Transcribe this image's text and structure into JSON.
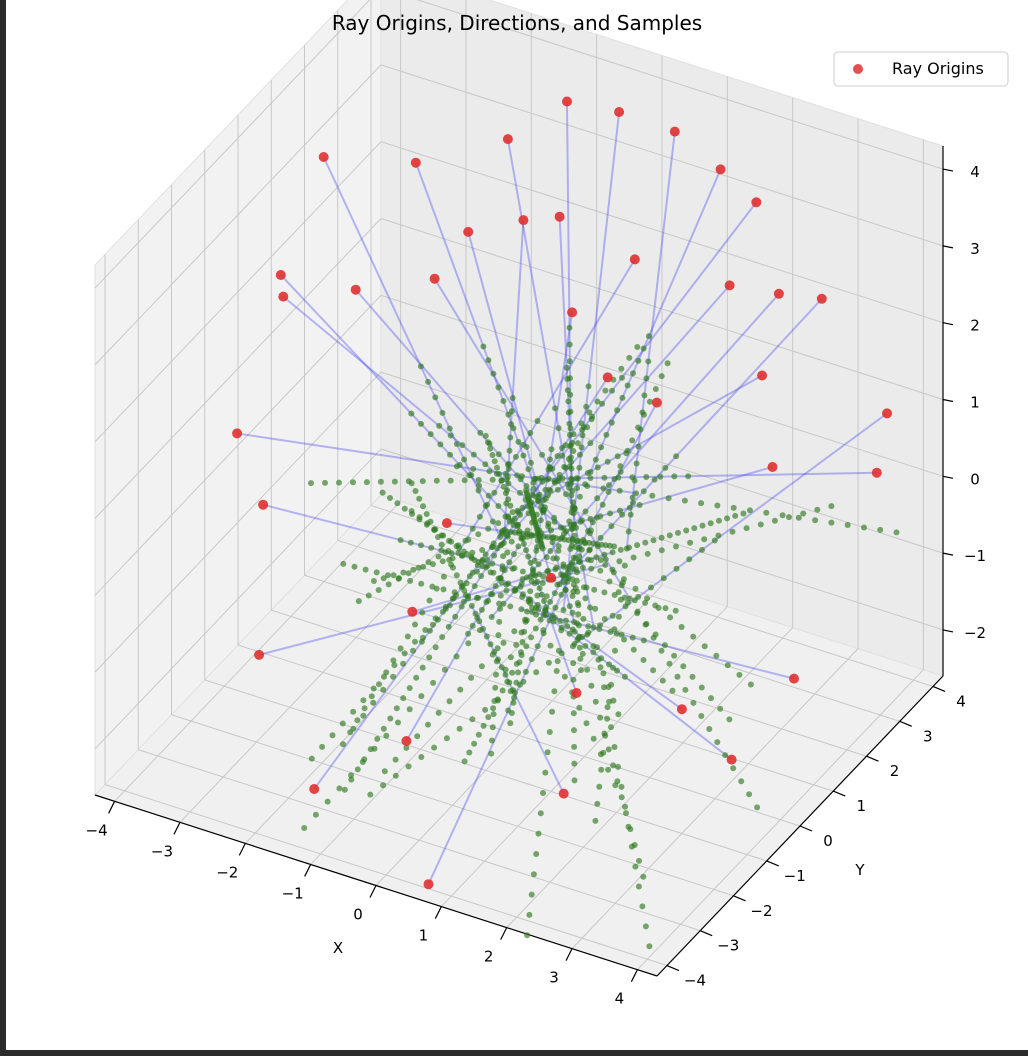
{
  "chart_data": {
    "type": "scatter",
    "title": "Ray Origins, Directions, and Samples",
    "xlabel": "X",
    "ylabel": "Y",
    "zlabel": "",
    "xlim": [
      -4.3,
      4.3
    ],
    "ylim": [
      -4.3,
      4.3
    ],
    "zlim": [
      -2.6,
      4.3
    ],
    "x_ticks": [
      "−4",
      "−3",
      "−2",
      "−1",
      "0",
      "1",
      "2",
      "3",
      "4"
    ],
    "y_ticks": [
      "−4",
      "−3",
      "−2",
      "−1",
      "0",
      "1",
      "2",
      "3",
      "4"
    ],
    "z_ticks": [
      "−2",
      "−1",
      "0",
      "1",
      "2",
      "3",
      "4"
    ],
    "grid": true,
    "legend": {
      "position": "top-right",
      "entries": [
        "Ray Origins"
      ]
    },
    "colors": {
      "origins": "#e03030",
      "directions": "#3b3bf0",
      "samples": "#2f7a1f"
    },
    "series": [
      {
        "name": "Ray Origins",
        "marker": "circle",
        "color": "#e03030"
      }
    ],
    "ray_origins": [
      [
        -3.6,
        1.2,
        3.4
      ],
      [
        -3.9,
        0.5,
        2.1
      ],
      [
        -2.8,
        2.4,
        3.0
      ],
      [
        -3.2,
        -0.8,
        2.6
      ],
      [
        -2.1,
        2.6,
        2.2
      ],
      [
        -1.9,
        3.4,
        3.1
      ],
      [
        -1.2,
        3.8,
        3.6
      ],
      [
        -0.3,
        3.6,
        3.8
      ],
      [
        0.4,
        3.9,
        3.6
      ],
      [
        1.1,
        3.9,
        3.3
      ],
      [
        1.8,
        3.6,
        3.2
      ],
      [
        2.4,
        3.1,
        2.4
      ],
      [
        2.6,
        2.2,
        1.8
      ],
      [
        -0.6,
        2.4,
        2.9
      ],
      [
        0.5,
        2.5,
        2.6
      ],
      [
        1.5,
        1.2,
        1.6
      ],
      [
        3.8,
        3.6,
        1.0
      ],
      [
        4.0,
        2.9,
        0.6
      ],
      [
        3.7,
        1.0,
        -1.3
      ],
      [
        2.9,
        -0.8,
        -1.1
      ],
      [
        2.0,
        -2.2,
        -0.5
      ],
      [
        1.1,
        -1.2,
        0.3
      ],
      [
        0.2,
        -3.6,
        0.7
      ],
      [
        -0.9,
        -0.4,
        0.1
      ],
      [
        -2.4,
        -3.1,
        -0.8
      ],
      [
        -3.0,
        -1.8,
        0.4
      ],
      [
        -1.2,
        -3.8,
        -1.9
      ],
      [
        0.6,
        -3.9,
        -2.6
      ],
      [
        1.6,
        -1.8,
        -2.1
      ],
      [
        -0.4,
        -2.6,
        -1.6
      ],
      [
        3.1,
        0.3,
        -2.2
      ],
      [
        2.2,
        3.3,
        0.0
      ],
      [
        -3.5,
        -1.6,
        1.1
      ],
      [
        -1.8,
        1.0,
        2.4
      ],
      [
        0.9,
        0.9,
        1.9
      ],
      [
        1.9,
        2.6,
        2.6
      ],
      [
        -2.6,
        0.2,
        2.4
      ],
      [
        0.1,
        1.4,
        2.3
      ],
      [
        2.7,
        3.8,
        2.1
      ],
      [
        -0.9,
        1.9,
        3.0
      ]
    ],
    "direction_target_center": [
      0.3,
      0.2,
      -0.4
    ],
    "sample_count_per_ray": 28,
    "samples_note": ""
  }
}
